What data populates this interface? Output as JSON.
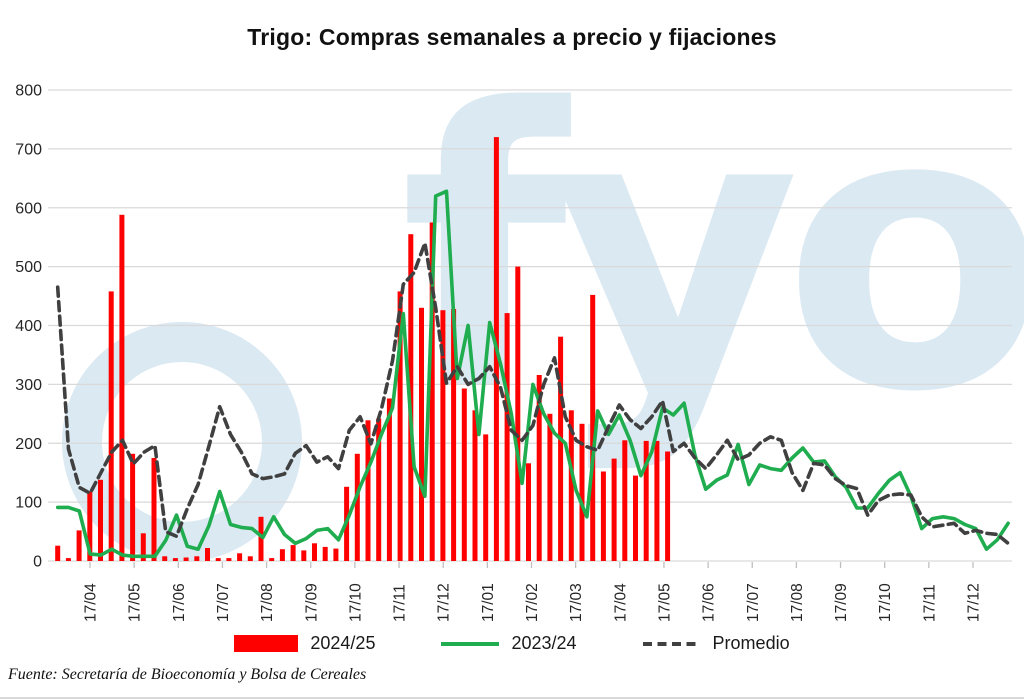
{
  "title": "Trigo: Compras semanales a precio y fijaciones",
  "watermark": "fyo",
  "source": "Fuente: Secretaría de Bioeconomía y Bolsa de Cereales",
  "colors": {
    "bar": "#ff0000",
    "line_2023": "#1fad4f",
    "promedio": "#404040",
    "grid": "#d9d9d9",
    "tick": "#bfbfbf",
    "axis_text": "#262626",
    "watermark": "#dbe9f3"
  },
  "legend": {
    "items": [
      {
        "label": "2024/25",
        "swatch": "bar"
      },
      {
        "label": "2023/24",
        "swatch": "line"
      },
      {
        "label": "Promedio",
        "swatch": "dash"
      }
    ]
  },
  "chart_data": {
    "type": "bar",
    "title": "Trigo: Compras semanales a precio y fijaciones",
    "xlabel": "",
    "ylabel": "",
    "ylim": [
      0,
      800
    ],
    "y_ticks": [
      0,
      100,
      200,
      300,
      400,
      500,
      600,
      700,
      800
    ],
    "grid": true,
    "legend_position": "bottom",
    "x_tick_labels": [
      "17/04",
      "17/05",
      "17/06",
      "17/07",
      "17/08",
      "17/09",
      "17/10",
      "17/11",
      "17/12",
      "17/01",
      "17/02",
      "17/03",
      "17/04",
      "17/05",
      "17/06",
      "17/07",
      "17/08",
      "17/09",
      "17/10",
      "17/11",
      "17/12"
    ],
    "x_unit": "semanas (weekly points)",
    "series": [
      {
        "name": "2024/25",
        "type": "bar",
        "color": "#ff0000",
        "values": [
          26,
          5,
          52,
          118,
          138,
          458,
          588,
          182,
          47,
          175,
          8,
          5,
          6,
          8,
          22,
          5,
          5,
          13,
          8,
          75,
          5,
          20,
          27,
          18,
          30,
          24,
          21,
          126,
          182,
          239,
          242,
          276,
          458,
          555,
          430,
          575,
          426,
          428,
          293,
          256,
          215,
          720,
          421,
          500,
          166,
          316,
          250,
          381,
          256,
          233,
          452,
          152,
          174,
          205,
          145,
          204,
          204,
          186
        ]
      },
      {
        "name": "2023/24",
        "type": "line",
        "color": "#1fad4f",
        "values": [
          91,
          91,
          85,
          12,
          10,
          20,
          10,
          8,
          8,
          8,
          35,
          78,
          25,
          20,
          60,
          118,
          62,
          57,
          55,
          40,
          75,
          45,
          30,
          38,
          52,
          55,
          36,
          78,
          126,
          168,
          216,
          260,
          420,
          160,
          110,
          620,
          628,
          310,
          400,
          215,
          405,
          335,
          250,
          132,
          300,
          250,
          217,
          200,
          120,
          75,
          255,
          215,
          248,
          205,
          145,
          185,
          260,
          248,
          268,
          180,
          122,
          137,
          146,
          198,
          130,
          163,
          157,
          154,
          175,
          192,
          168,
          170,
          143,
          125,
          90,
          90,
          115,
          137,
          150,
          110,
          55,
          72,
          75,
          72,
          62,
          55,
          20,
          36,
          64
        ]
      },
      {
        "name": "Promedio",
        "type": "line",
        "dashed": true,
        "color": "#404040",
        "values": [
          465,
          190,
          125,
          115,
          150,
          185,
          205,
          165,
          185,
          196,
          50,
          42,
          89,
          130,
          195,
          262,
          215,
          185,
          148,
          140,
          143,
          148,
          183,
          196,
          168,
          177,
          157,
          222,
          245,
          199,
          260,
          340,
          470,
          490,
          540,
          430,
          302,
          330,
          300,
          310,
          330,
          295,
          222,
          205,
          230,
          300,
          345,
          245,
          205,
          194,
          188,
          228,
          265,
          240,
          225,
          245,
          272,
          186,
          200,
          175,
          157,
          180,
          205,
          172,
          180,
          200,
          211,
          205,
          150,
          120,
          166,
          163,
          140,
          128,
          123,
          78,
          103,
          112,
          114,
          112,
          75,
          58,
          61,
          64,
          47,
          52,
          47,
          45,
          30
        ]
      }
    ]
  }
}
